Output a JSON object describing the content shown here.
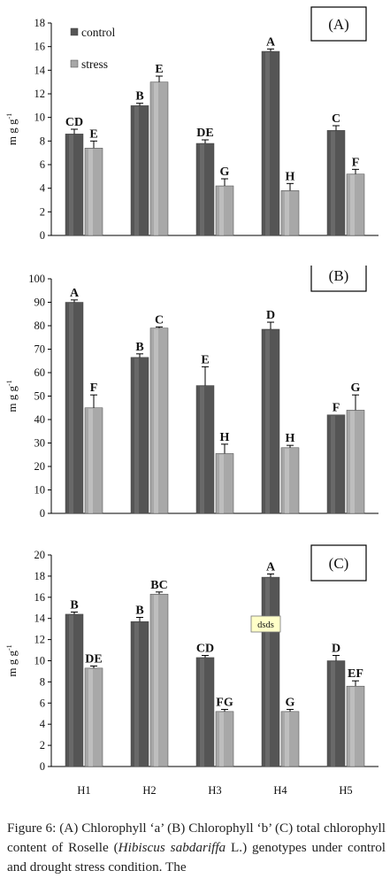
{
  "chart_data": [
    {
      "type": "bar",
      "panel_label": "(A)",
      "ylabel": "m g g-1",
      "ylim": [
        0,
        18
      ],
      "yticks": [
        0,
        2,
        4,
        6,
        8,
        10,
        12,
        14,
        16,
        18
      ],
      "categories": [
        "H1",
        "H2",
        "H3",
        "H4",
        "H5"
      ],
      "legend": {
        "position": "top-left"
      },
      "series": [
        {
          "name": "control",
          "values": [
            8.6,
            11.0,
            7.8,
            15.6,
            8.9
          ],
          "errors": [
            0.4,
            0.2,
            0.3,
            0.2,
            0.4
          ],
          "letters": [
            "CD",
            "B",
            "DE",
            "A",
            "C"
          ]
        },
        {
          "name": "stress",
          "values": [
            7.4,
            13.0,
            4.2,
            3.8,
            5.2
          ],
          "errors": [
            0.6,
            0.5,
            0.6,
            0.6,
            0.4
          ],
          "letters": [
            "E",
            "E",
            "G",
            "H",
            "F"
          ]
        }
      ]
    },
    {
      "type": "bar",
      "panel_label": "(B)",
      "ylabel": "m g g-1",
      "ylim": [
        0,
        100
      ],
      "yticks": [
        0,
        10,
        20,
        30,
        40,
        50,
        60,
        70,
        80,
        90,
        100
      ],
      "categories": [
        "H1",
        "H2",
        "H3",
        "H4",
        "H5"
      ],
      "series": [
        {
          "name": "control",
          "values": [
            90,
            66.5,
            54.5,
            78.5,
            42
          ],
          "errors": [
            1,
            1.5,
            8,
            3,
            0
          ],
          "letters": [
            "A",
            "B",
            "E",
            "D",
            "F"
          ]
        },
        {
          "name": "stress",
          "values": [
            45,
            79,
            25.5,
            28,
            44
          ],
          "errors": [
            5.5,
            0.5,
            4,
            1,
            6.5
          ],
          "letters": [
            "F",
            "C",
            "H",
            "H",
            "G"
          ]
        }
      ]
    },
    {
      "type": "bar",
      "panel_label": "(C)",
      "ylabel": "m g g-1",
      "ylim": [
        0,
        20
      ],
      "yticks": [
        0,
        2,
        4,
        6,
        8,
        10,
        12,
        14,
        16,
        18,
        20
      ],
      "categories": [
        "H1",
        "H2",
        "H3",
        "H4",
        "H5"
      ],
      "tooltip": "dsds",
      "series": [
        {
          "name": "control",
          "values": [
            14.4,
            13.7,
            10.3,
            17.9,
            10.0
          ],
          "errors": [
            0.2,
            0.4,
            0.2,
            0.3,
            0.5
          ],
          "letters": [
            "B",
            "B",
            "CD",
            "A",
            "D"
          ]
        },
        {
          "name": "stress",
          "values": [
            9.3,
            16.3,
            5.2,
            5.2,
            7.6
          ],
          "errors": [
            0.2,
            0.2,
            0.2,
            0.2,
            0.5
          ],
          "letters": [
            "DE",
            "BC",
            "FG",
            "G",
            "EF"
          ]
        }
      ]
    }
  ],
  "colors": {
    "control": "#555555",
    "stress": "#a8a8a8",
    "axis": "#000000"
  },
  "caption": {
    "prefix": "Figure 6:  (A) Chlorophyll ‘a’ (B) Chlorophyll ‘b’ (C) total chlorophyll content of Roselle (",
    "species": "Hibiscus sabdariffa",
    "suffix": " L.) genotypes under control and drought stress condition. The"
  }
}
